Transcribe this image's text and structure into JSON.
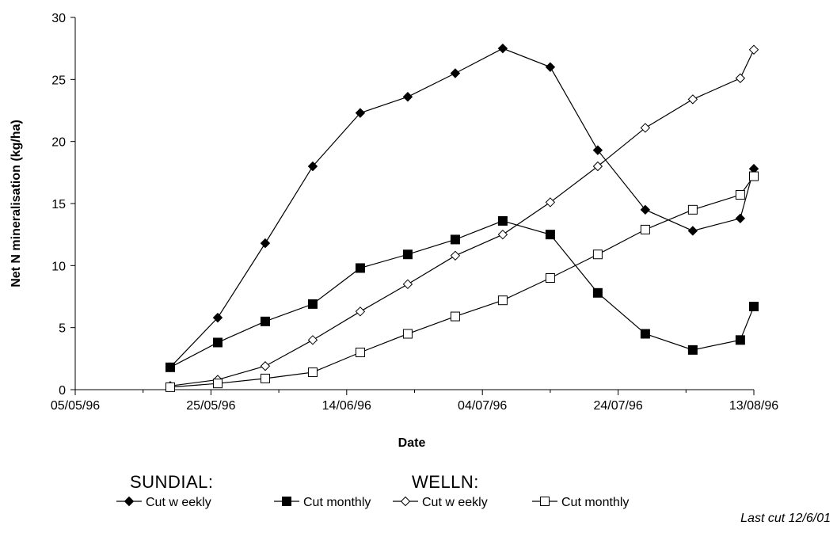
{
  "chart_data": {
    "type": "line",
    "title": "",
    "xlabel": "Date",
    "ylabel": "Net N mineralisation (kg/ha)",
    "x_tick_labels": [
      "05/05/96",
      "25/05/96",
      "14/06/96",
      "04/07/96",
      "24/07/96",
      "13/08/96"
    ],
    "x_tick_dates": [
      "1996-05-05",
      "1996-05-25",
      "1996-06-14",
      "1996-07-04",
      "1996-07-24",
      "1996-08-13"
    ],
    "xlim": [
      "1996-05-05",
      "1996-08-13"
    ],
    "y_ticks": [
      "0",
      "5",
      "10",
      "15",
      "20",
      "25",
      "30"
    ],
    "ylim": [
      0,
      30
    ],
    "grid": false,
    "legend_position": "bottom",
    "legend_groups": [
      {
        "label": "SUNDIAL:"
      },
      {
        "label": "WELLN:"
      }
    ],
    "x": [
      "1996-05-19",
      "1996-05-22",
      "1996-05-29",
      "1996-06-05",
      "1996-06-12",
      "1996-06-19",
      "1996-06-26",
      "1996-07-03",
      "1996-07-10",
      "1996-07-17",
      "1996-07-24",
      "1996-07-31",
      "1996-08-07",
      "1996-08-13"
    ],
    "series": [
      {
        "name": "Cut w eekly",
        "group": "SUNDIAL:",
        "marker": "diamond",
        "filled": true,
        "x": [
          "1996-05-19",
          "1996-05-26",
          "1996-06-02",
          "1996-06-09",
          "1996-06-16",
          "1996-06-23",
          "1996-06-30",
          "1996-07-07",
          "1996-07-14",
          "1996-07-21",
          "1996-07-28",
          "1996-08-04",
          "1996-08-11",
          "1996-08-13"
        ],
        "values": [
          1.8,
          5.8,
          11.8,
          18.0,
          22.3,
          23.6,
          25.5,
          27.5,
          26.0,
          19.3,
          14.5,
          12.8,
          13.8,
          17.8
        ]
      },
      {
        "name": "Cut monthly",
        "group": "SUNDIAL:",
        "marker": "square",
        "filled": true,
        "x": [
          "1996-05-19",
          "1996-05-26",
          "1996-06-02",
          "1996-06-09",
          "1996-06-16",
          "1996-06-23",
          "1996-06-30",
          "1996-07-07",
          "1996-07-14",
          "1996-07-21",
          "1996-07-28",
          "1996-08-04",
          "1996-08-11",
          "1996-08-13"
        ],
        "values": [
          1.8,
          3.8,
          5.5,
          6.9,
          9.8,
          10.9,
          12.1,
          13.6,
          12.5,
          7.8,
          4.5,
          3.2,
          4.0,
          6.7
        ]
      },
      {
        "name": "Cut w eekly",
        "group": "WELLN:",
        "marker": "diamond",
        "filled": false,
        "x": [
          "1996-05-19",
          "1996-05-26",
          "1996-06-02",
          "1996-06-09",
          "1996-06-16",
          "1996-06-23",
          "1996-06-30",
          "1996-07-07",
          "1996-07-14",
          "1996-07-21",
          "1996-07-28",
          "1996-08-04",
          "1996-08-11",
          "1996-08-13"
        ],
        "values": [
          0.3,
          0.8,
          1.9,
          4.0,
          6.3,
          8.5,
          10.8,
          12.5,
          15.1,
          18.0,
          21.1,
          23.4,
          25.1,
          27.4
        ]
      },
      {
        "name": "Cut monthly",
        "group": "WELLN:",
        "marker": "square",
        "filled": false,
        "x": [
          "1996-05-19",
          "1996-05-26",
          "1996-06-02",
          "1996-06-09",
          "1996-06-16",
          "1996-06-23",
          "1996-06-30",
          "1996-07-07",
          "1996-07-14",
          "1996-07-21",
          "1996-07-28",
          "1996-08-04",
          "1996-08-11",
          "1996-08-13"
        ],
        "values": [
          0.2,
          0.5,
          0.9,
          1.4,
          3.0,
          4.5,
          5.9,
          7.2,
          9.0,
          10.9,
          12.9,
          14.5,
          15.7,
          17.2
        ]
      }
    ],
    "annotations": [
      "Last cut 12/6/01"
    ]
  },
  "colors": {
    "line": "#000000",
    "background": "#ffffff"
  }
}
